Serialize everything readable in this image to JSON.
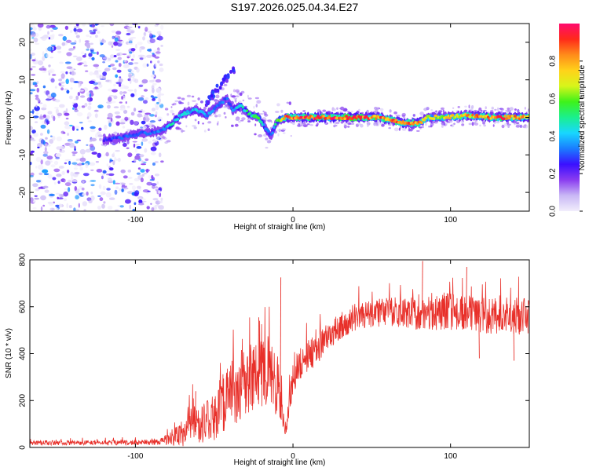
{
  "title": "S197.2026.025.04.34.E27",
  "chart_data": [
    {
      "type": "heatmap",
      "name": "spectrogram",
      "xlabel": "Height of straight line (km)",
      "ylabel": "Frequency (Hz)",
      "xlim": [
        -167,
        150
      ],
      "ylim": [
        -25,
        25
      ],
      "xticks": [
        -100,
        0,
        100
      ],
      "yticks": [
        -20,
        -10,
        0,
        10,
        20
      ],
      "colorbar": {
        "label": "Normalized spectral amplitude",
        "range": [
          0,
          1
        ],
        "ticks": [
          0.0,
          0.2,
          0.4,
          0.6,
          0.8
        ],
        "colors": [
          "#f2eefc",
          "#c9b8f5",
          "#8a3cf0",
          "#3a10ff",
          "#1a7cff",
          "#18d7ff",
          "#1af08e",
          "#3ef21a",
          "#d8f51a",
          "#ffd21a",
          "#ff8c1a",
          "#ff2a1a",
          "#ff0a6e"
        ]
      },
      "noise_region_x": [
        -167,
        -83
      ],
      "ridge": {
        "x": [
          -120,
          -110,
          -100,
          -90,
          -83,
          -78,
          -70,
          -62,
          -55,
          -48,
          -42,
          -38,
          -33,
          -28,
          -22,
          -17,
          -14,
          -10,
          -5,
          0,
          20,
          40,
          55,
          60,
          70,
          80,
          85,
          95,
          110,
          130,
          150
        ],
        "freq": [
          -6,
          -5.5,
          -4.5,
          -4,
          -3.5,
          -2,
          1,
          2,
          0.5,
          3,
          5,
          2,
          3,
          1,
          0,
          -3,
          -5,
          -1,
          0,
          0,
          0,
          0,
          0,
          -0.5,
          -1.5,
          -1.5,
          0,
          0,
          0.5,
          0,
          0
        ],
        "amp": [
          0.25,
          0.3,
          0.3,
          0.3,
          0.35,
          0.45,
          0.4,
          0.4,
          0.35,
          0.35,
          0.3,
          0.35,
          0.5,
          0.5,
          0.55,
          0.35,
          0.3,
          0.5,
          0.85,
          0.85,
          0.9,
          0.9,
          0.85,
          0.8,
          0.85,
          0.8,
          0.7,
          0.7,
          0.75,
          0.85,
          0.8
        ]
      }
    },
    {
      "type": "line",
      "name": "snr",
      "xlabel": "Height of straight line (km)",
      "ylabel": "SNR (10 * v/v)",
      "xlim": [
        -167,
        150
      ],
      "ylim": [
        0,
        800
      ],
      "xticks": [
        -100,
        0,
        100
      ],
      "yticks": [
        0,
        200,
        400,
        600,
        800
      ],
      "color": "#e8302a",
      "envelope": {
        "x": [
          -167,
          -120,
          -85,
          -78,
          -70,
          -65,
          -60,
          -55,
          -50,
          -45,
          -40,
          -35,
          -30,
          -25,
          -20,
          -15,
          -10,
          -7,
          -5,
          -3,
          0,
          5,
          10,
          15,
          20,
          30,
          40,
          60,
          80,
          100,
          120,
          150
        ],
        "base": [
          20,
          20,
          22,
          40,
          60,
          110,
          90,
          110,
          140,
          190,
          220,
          250,
          290,
          300,
          320,
          330,
          280,
          150,
          80,
          140,
          300,
          360,
          390,
          420,
          460,
          520,
          560,
          580,
          570,
          580,
          560,
          560
        ],
        "amp": [
          10,
          10,
          12,
          30,
          60,
          80,
          70,
          90,
          110,
          130,
          140,
          150,
          150,
          140,
          150,
          150,
          150,
          60,
          30,
          60,
          80,
          70,
          70,
          70,
          60,
          60,
          60,
          60,
          70,
          80,
          80,
          80
        ]
      },
      "spikes": [
        {
          "x": -62,
          "y": 240
        },
        {
          "x": -33,
          "y": 415
        },
        {
          "x": -22,
          "y": 555
        },
        {
          "x": -8,
          "y": 725
        },
        {
          "x": 82,
          "y": 795
        },
        {
          "x": 110,
          "y": 770
        },
        {
          "x": 118,
          "y": 380
        },
        {
          "x": 140,
          "y": 370
        }
      ]
    }
  ]
}
